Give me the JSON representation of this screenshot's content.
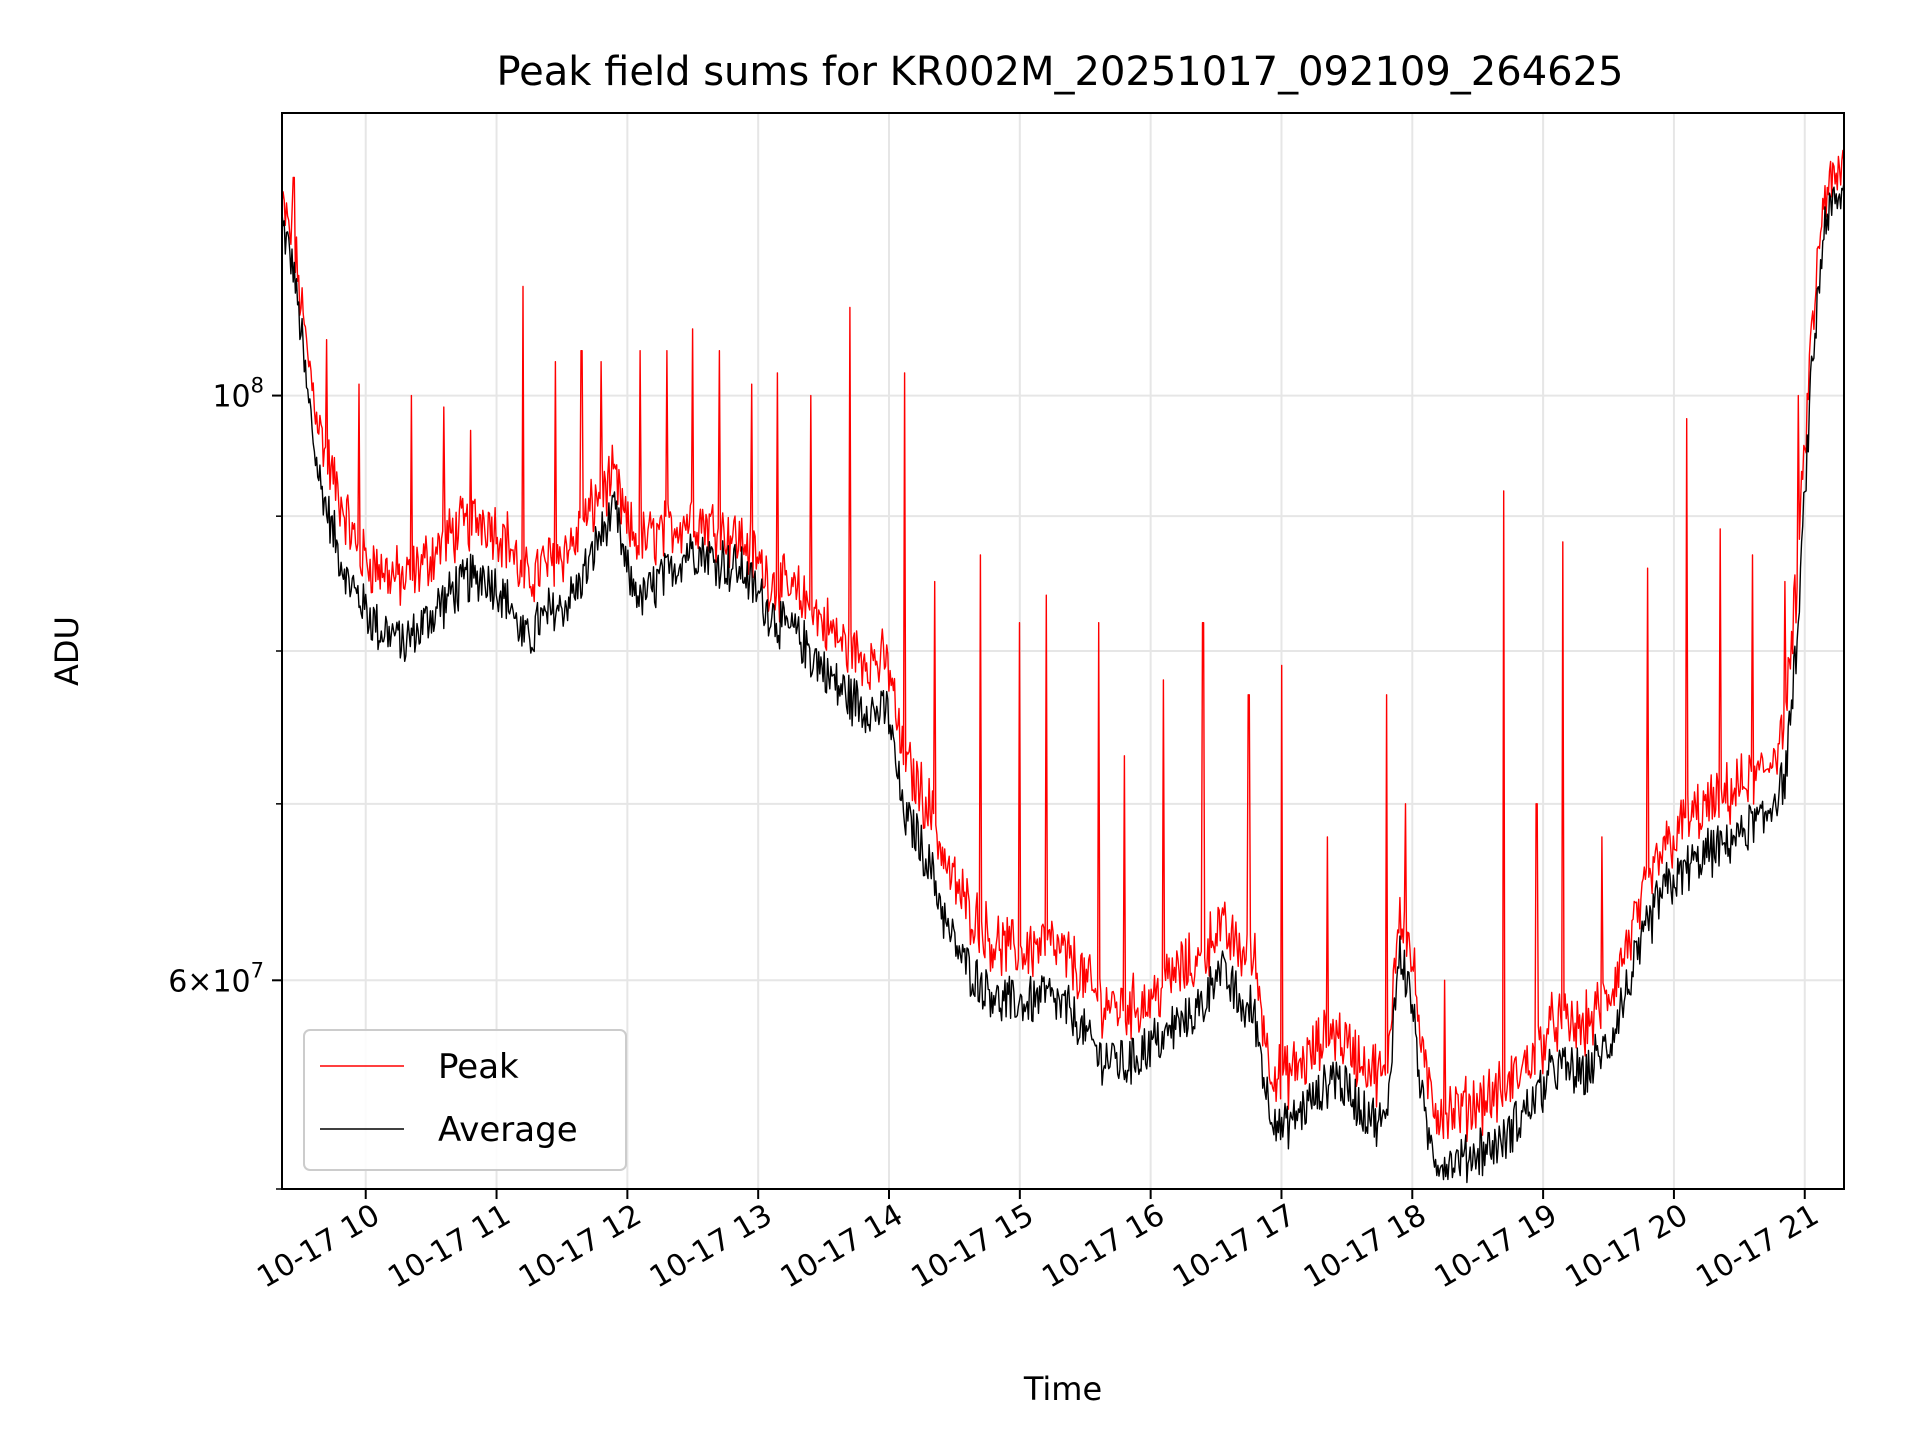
{
  "chart_data": {
    "type": "line",
    "title": "Peak field sums for KR002M_20251017_092109_264625",
    "xlabel": "Time",
    "ylabel": "ADU",
    "yscale": "log",
    "ylim": [
      50000000,
      128000000
    ],
    "xlim": [
      9.36,
      21.3
    ],
    "grid": true,
    "legend_position": "lower-left",
    "x_ticks": [
      {
        "value": 10,
        "label": "10-17 10"
      },
      {
        "value": 11,
        "label": "10-17 11"
      },
      {
        "value": 12,
        "label": "10-17 12"
      },
      {
        "value": 13,
        "label": "10-17 13"
      },
      {
        "value": 14,
        "label": "10-17 14"
      },
      {
        "value": 15,
        "label": "10-17 15"
      },
      {
        "value": 16,
        "label": "10-17 16"
      },
      {
        "value": 17,
        "label": "10-17 17"
      },
      {
        "value": 18,
        "label": "10-17 18"
      },
      {
        "value": 19,
        "label": "10-17 19"
      },
      {
        "value": 20,
        "label": "10-17 20"
      },
      {
        "value": 21,
        "label": "10-17 21"
      }
    ],
    "y_major_ticks": [
      {
        "value": 60000000,
        "mantissa": "6",
        "base": "10",
        "exp": "7"
      },
      {
        "value": 100000000,
        "mantissa": "",
        "base": "10",
        "exp": "8"
      }
    ],
    "y_minor_ticks": [
      50000000,
      70000000,
      80000000,
      90000000
    ],
    "series": [
      {
        "name": "Peak",
        "color": "#ff0000",
        "x": [
          9.36,
          9.45,
          9.55,
          9.65,
          9.75,
          9.85,
          9.95,
          10.1,
          10.3,
          10.5,
          10.7,
          10.9,
          11.1,
          11.2,
          11.4,
          11.6,
          11.8,
          11.9,
          12.0,
          12.1,
          12.3,
          12.5,
          12.7,
          12.9,
          13.1,
          13.3,
          13.5,
          13.7,
          13.85,
          14.0,
          14.1,
          14.3,
          14.45,
          14.6,
          14.8,
          15.0,
          15.2,
          15.4,
          15.6,
          15.8,
          16.0,
          16.2,
          16.4,
          16.5,
          16.7,
          16.8,
          16.9,
          17.0,
          17.2,
          17.4,
          17.6,
          17.8,
          17.9,
          18.0,
          18.1,
          18.2,
          18.35,
          18.5,
          18.7,
          18.9,
          19.1,
          19.3,
          19.5,
          19.7,
          19.9,
          20.1,
          20.3,
          20.5,
          20.7,
          20.85,
          20.95,
          21.05,
          21.15,
          21.3
        ],
        "y": [
          118000000,
          114000000,
          104000000,
          97000000,
          93000000,
          90000000,
          87000000,
          86000000,
          85000000,
          87000000,
          89000000,
          90000000,
          88000000,
          85000000,
          86500000,
          88000000,
          92000000,
          93000000,
          89000000,
          88000000,
          89000000,
          90000000,
          89000000,
          88000000,
          85000000,
          84000000,
          82000000,
          80000000,
          79500000,
          79000000,
          73000000,
          70000000,
          66000000,
          64000000,
          62000000,
          61500000,
          62000000,
          61000000,
          59000000,
          58500000,
          59000000,
          60500000,
          61000000,
          63000000,
          61500000,
          61000000,
          56000000,
          55000000,
          56000000,
          57500000,
          56000000,
          55000000,
          64000000,
          61000000,
          55000000,
          53500000,
          53500000,
          54000000,
          54500000,
          56000000,
          58000000,
          57500000,
          59000000,
          63000000,
          67000000,
          69000000,
          70000000,
          71000000,
          72000000,
          75000000,
          86000000,
          105000000,
          119000000,
          122000000
        ],
        "spikes": [
          [
            9.45,
            121000000
          ],
          [
            9.7,
            105000000
          ],
          [
            9.95,
            101000000
          ],
          [
            10.35,
            100000000
          ],
          [
            10.6,
            99000000
          ],
          [
            10.8,
            97000000
          ],
          [
            11.2,
            110000000
          ],
          [
            11.45,
            103000000
          ],
          [
            11.65,
            104000000
          ],
          [
            11.8,
            103000000
          ],
          [
            12.1,
            104000000
          ],
          [
            12.3,
            104000000
          ],
          [
            12.5,
            106000000
          ],
          [
            12.7,
            104000000
          ],
          [
            12.95,
            101000000
          ],
          [
            13.15,
            102000000
          ],
          [
            13.4,
            100000000
          ],
          [
            13.7,
            108000000
          ],
          [
            14.12,
            102000000
          ],
          [
            14.35,
            85000000
          ],
          [
            14.7,
            87000000
          ],
          [
            15.0,
            82000000
          ],
          [
            15.2,
            84000000
          ],
          [
            15.6,
            82000000
          ],
          [
            15.8,
            73000000
          ],
          [
            16.1,
            78000000
          ],
          [
            16.4,
            82000000
          ],
          [
            16.75,
            77000000
          ],
          [
            17.0,
            79000000
          ],
          [
            17.35,
            68000000
          ],
          [
            17.8,
            77000000
          ],
          [
            17.95,
            70000000
          ],
          [
            18.25,
            60000000
          ],
          [
            18.7,
            92000000
          ],
          [
            18.95,
            70000000
          ],
          [
            19.15,
            88000000
          ],
          [
            19.45,
            68000000
          ],
          [
            19.8,
            86000000
          ],
          [
            20.1,
            98000000
          ],
          [
            20.35,
            89000000
          ],
          [
            20.6,
            87000000
          ],
          [
            20.85,
            85000000
          ],
          [
            20.95,
            100000000
          ]
        ]
      },
      {
        "name": "Average",
        "color": "#000000",
        "x": [
          9.36,
          9.45,
          9.55,
          9.65,
          9.75,
          9.85,
          9.95,
          10.1,
          10.3,
          10.5,
          10.7,
          10.9,
          11.1,
          11.2,
          11.4,
          11.6,
          11.8,
          11.9,
          12.0,
          12.1,
          12.3,
          12.5,
          12.7,
          12.9,
          13.1,
          13.3,
          13.5,
          13.7,
          13.85,
          14.0,
          14.1,
          14.3,
          14.45,
          14.6,
          14.8,
          15.0,
          15.2,
          15.4,
          15.6,
          15.8,
          16.0,
          16.2,
          16.4,
          16.5,
          16.7,
          16.8,
          16.9,
          17.0,
          17.2,
          17.4,
          17.6,
          17.8,
          17.9,
          18.0,
          18.1,
          18.2,
          18.35,
          18.5,
          18.7,
          18.9,
          19.1,
          19.3,
          19.5,
          19.7,
          19.9,
          20.1,
          20.3,
          20.5,
          20.7,
          20.85,
          20.95,
          21.05,
          21.15,
          21.3
        ],
        "y": [
          117000000,
          112000000,
          101000000,
          93000000,
          89000000,
          86000000,
          84000000,
          82000000,
          81000000,
          83000000,
          85000000,
          86000000,
          84000000,
          81000000,
          83000000,
          84500000,
          89000000,
          91000000,
          86000000,
          84000000,
          86000000,
          88000000,
          87000000,
          86000000,
          83000000,
          81500000,
          79000000,
          77000000,
          76500000,
          76000000,
          70000000,
          67000000,
          63000000,
          61000000,
          59500000,
          59000000,
          59500000,
          58500000,
          56500000,
          56000000,
          57000000,
          58000000,
          59000000,
          61000000,
          59000000,
          58500000,
          54000000,
          53000000,
          54000000,
          55500000,
          54000000,
          53000000,
          62000000,
          59000000,
          53000000,
          51500000,
          51500000,
          52000000,
          52500000,
          54000000,
          56000000,
          55500000,
          57000000,
          61000000,
          65000000,
          66500000,
          67500000,
          68500000,
          69500000,
          72000000,
          82000000,
          102000000,
          117000000,
          120000000
        ]
      }
    ]
  }
}
